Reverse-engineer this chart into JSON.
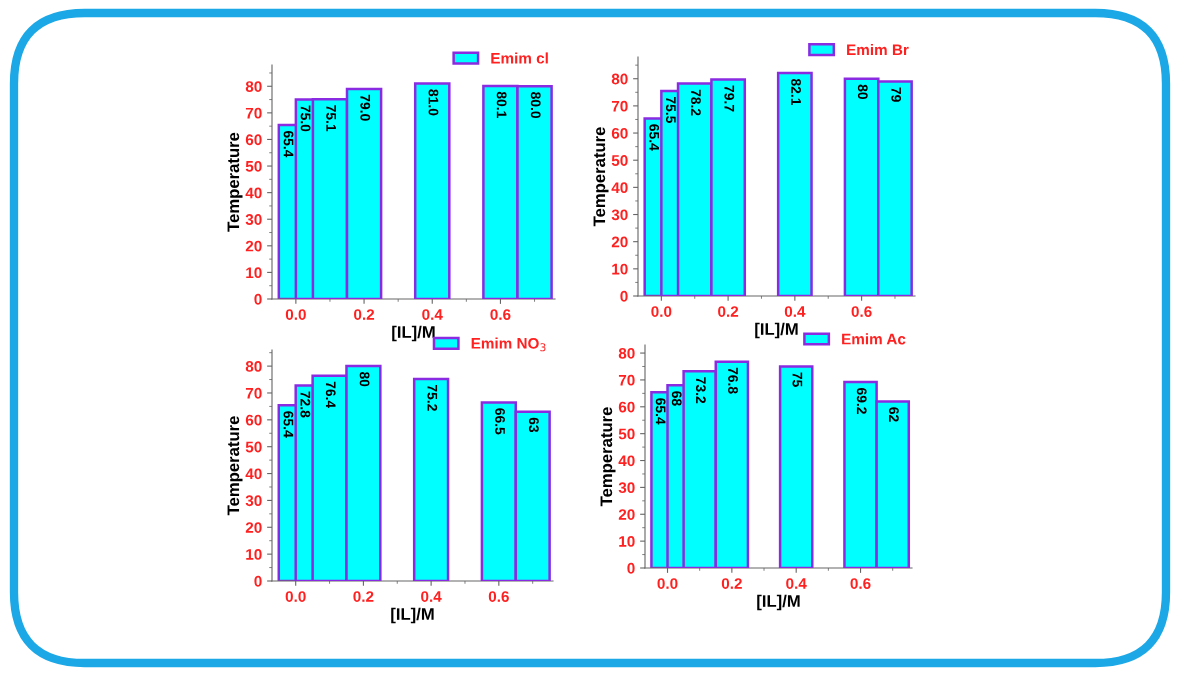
{
  "chart_data": [
    {
      "type": "bar",
      "xlabel": "[IL]/M",
      "ylabel": "Temperature",
      "x": [
        0.0,
        0.05,
        0.1,
        0.2,
        0.4,
        0.6,
        0.7
      ],
      "series": [
        {
          "name": "Emim cl",
          "color": "#00ffff",
          "values": [
            65.4,
            75.0,
            75.1,
            79.0,
            81.0,
            80.1,
            80.0
          ],
          "value_labels": [
            "65.4",
            "75.0",
            "75.1",
            "79.0",
            "81.0",
            "80.1",
            "80.0"
          ]
        }
      ],
      "xlim": [
        -0.07,
        0.76
      ],
      "xticks": [
        {
          "value": 0.0,
          "label": "0.0"
        },
        {
          "value": 0.2,
          "label": "0.2"
        },
        {
          "value": 0.4,
          "label": "0.4"
        },
        {
          "value": 0.6,
          "label": "0.6"
        }
      ],
      "ylim": [
        0,
        88
      ],
      "yticks": [
        0,
        10,
        20,
        30,
        40,
        50,
        60,
        70,
        80
      ],
      "legend": "top right",
      "grid": false
    },
    {
      "type": "bar",
      "xlabel": "[IL]/M",
      "ylabel": "Temperature",
      "x": [
        0.0,
        0.05,
        0.1,
        0.2,
        0.4,
        0.6,
        0.7
      ],
      "series": [
        {
          "name": "Emim Br",
          "color": "#00ffff",
          "values": [
            65.4,
            75.5,
            78.2,
            79.7,
            82.1,
            80,
            79
          ],
          "value_labels": [
            "65.4",
            "75.5",
            "78.2",
            "79.7",
            "82.1",
            "80",
            "79"
          ]
        }
      ],
      "xlim": [
        -0.07,
        0.76
      ],
      "xticks": [
        {
          "value": 0.0,
          "label": "0.0"
        },
        {
          "value": 0.2,
          "label": "0.2"
        },
        {
          "value": 0.4,
          "label": "0.4"
        },
        {
          "value": 0.6,
          "label": "0.6"
        }
      ],
      "ylim": [
        0,
        88
      ],
      "yticks": [
        0,
        10,
        20,
        30,
        40,
        50,
        60,
        70,
        80
      ],
      "legend": "top right",
      "grid": false
    },
    {
      "type": "bar",
      "xlabel": "[IL]/M",
      "ylabel": "Temperature",
      "x": [
        0.0,
        0.05,
        0.1,
        0.2,
        0.4,
        0.6,
        0.7
      ],
      "series": [
        {
          "name": "Emim NO$_{3}$",
          "color": "#00ffff",
          "values": [
            65.4,
            72.8,
            76.4,
            80,
            75.2,
            66.5,
            63
          ],
          "value_labels": [
            "65.4",
            "72.8",
            "76.4",
            "80",
            "75.2",
            "66.5",
            "63"
          ]
        }
      ],
      "xlim": [
        -0.07,
        0.76
      ],
      "xticks": [
        {
          "value": 0.0,
          "label": "0.0"
        },
        {
          "value": 0.2,
          "label": "0.2"
        },
        {
          "value": 0.4,
          "label": "0.4"
        },
        {
          "value": 0.6,
          "label": "0.6"
        }
      ],
      "ylim": [
        0,
        86
      ],
      "yticks": [
        0,
        10,
        20,
        30,
        40,
        50,
        60,
        70,
        80
      ],
      "legend": "top right",
      "grid": false
    },
    {
      "type": "bar",
      "xlabel": "[IL]/M",
      "ylabel": "Temperature",
      "x": [
        0.0,
        0.05,
        0.1,
        0.2,
        0.4,
        0.6,
        0.7
      ],
      "series": [
        {
          "name": "Emim Ac",
          "color": "#00ffff",
          "values": [
            65.4,
            68,
            73.2,
            76.8,
            75,
            69.2,
            62
          ],
          "value_labels": [
            "65.4",
            "68",
            "73.2",
            "76.8",
            "75",
            "69.2",
            "62"
          ]
        }
      ],
      "xlim": [
        -0.07,
        0.76
      ],
      "xticks": [
        {
          "value": 0.0,
          "label": "0.0"
        },
        {
          "value": 0.2,
          "label": "0.2"
        },
        {
          "value": 0.4,
          "label": "0.4"
        },
        {
          "value": 0.6,
          "label": "0.6"
        }
      ],
      "ylim": [
        0,
        83
      ],
      "yticks": [
        0,
        10,
        20,
        30,
        40,
        50,
        60,
        70,
        80
      ],
      "legend": "top right",
      "grid": false
    }
  ]
}
